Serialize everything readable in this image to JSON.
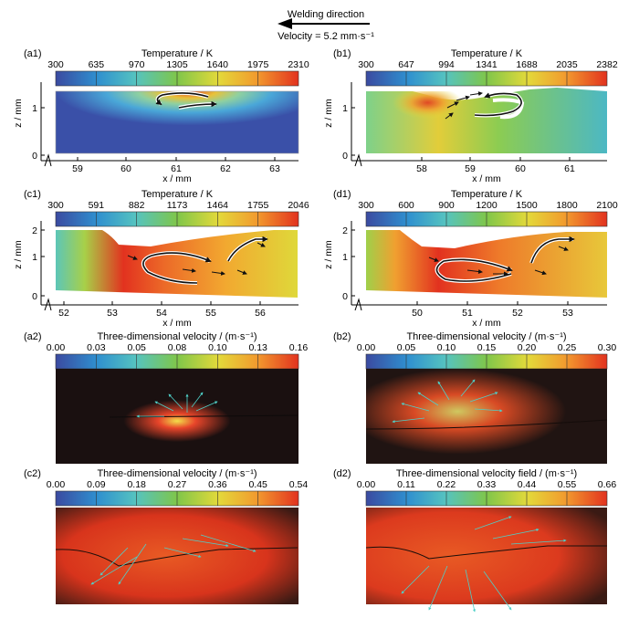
{
  "header": {
    "direction": "Welding direction",
    "velocity": "Velocity = 5.2 mm·s⁻¹"
  },
  "axis_common": {
    "zlabel": "z / mm",
    "xlabel": "x / mm"
  },
  "colors": {
    "temperature": [
      "#3b4aa0",
      "#2f8fcf",
      "#55c3c0",
      "#7fc64a",
      "#e3d93a",
      "#f29a2e",
      "#e2321f"
    ],
    "velocity": [
      "#3b4aa0",
      "#2f8fcf",
      "#55c3c0",
      "#7fc64a",
      "#e3d93a",
      "#f29a2e",
      "#e2321f"
    ]
  },
  "panels": [
    {
      "id": "a1",
      "label": "(a1)",
      "title": "Temperature / K",
      "ticks": [
        "300",
        "635",
        "970",
        "1305",
        "1640",
        "1975",
        "2310"
      ],
      "z_ticks": [
        "1",
        "0"
      ],
      "x_ticks": [
        "59",
        "60",
        "61",
        "62",
        "63"
      ]
    },
    {
      "id": "b1",
      "label": "(b1)",
      "title": "Temperature / K",
      "ticks": [
        "300",
        "647",
        "994",
        "1341",
        "1688",
        "2035",
        "2382"
      ],
      "z_ticks": [
        "1",
        "0"
      ],
      "x_ticks": [
        "58",
        "59",
        "60",
        "61"
      ]
    },
    {
      "id": "c1",
      "label": "(c1)",
      "title": "Temperature / K",
      "ticks": [
        "300",
        "591",
        "882",
        "1173",
        "1464",
        "1755",
        "2046"
      ],
      "z_ticks": [
        "2",
        "1",
        "0"
      ],
      "x_ticks": [
        "52",
        "53",
        "54",
        "55",
        "56"
      ]
    },
    {
      "id": "d1",
      "label": "(d1)",
      "title": "Temperature / K",
      "ticks": [
        "300",
        "600",
        "900",
        "1200",
        "1500",
        "1800",
        "2100"
      ],
      "z_ticks": [
        "2",
        "1",
        "0"
      ],
      "x_ticks": [
        "50",
        "51",
        "52",
        "53"
      ]
    },
    {
      "id": "a2",
      "label": "(a2)",
      "title": "Three-dimensional velocity / (m·s⁻¹)",
      "ticks": [
        "0.00",
        "0.03",
        "0.05",
        "0.08",
        "0.10",
        "0.13",
        "0.16"
      ]
    },
    {
      "id": "b2",
      "label": "(b2)",
      "title": "Three-dimensional velocity / (m·s⁻¹)",
      "ticks": [
        "0.00",
        "0.05",
        "0.10",
        "0.15",
        "0.20",
        "0.25",
        "0.30"
      ]
    },
    {
      "id": "c2",
      "label": "(c2)",
      "title": "Three-dimensional velocity / (m·s⁻¹)",
      "ticks": [
        "0.00",
        "0.09",
        "0.18",
        "0.27",
        "0.36",
        "0.45",
        "0.54"
      ]
    },
    {
      "id": "d2",
      "label": "(d2)",
      "title": "Three-dimensional velocity field / (m·s⁻¹)",
      "ticks": [
        "0.00",
        "0.11",
        "0.22",
        "0.33",
        "0.44",
        "0.55",
        "0.66"
      ]
    }
  ]
}
